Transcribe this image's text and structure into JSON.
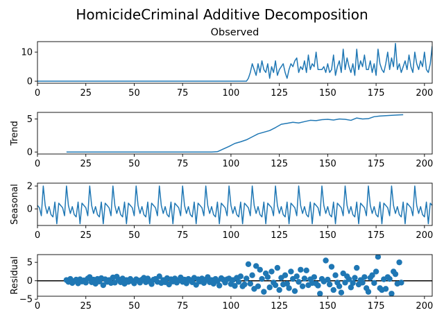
{
  "title": "HomicideCriminal Additive Decomposition",
  "chart_data": [
    {
      "type": "line",
      "title": "Observed",
      "ylabel": "",
      "xlim": [
        0,
        204
      ],
      "ylim": [
        -0.7,
        13.6
      ],
      "xticks": [
        "0",
        "25",
        "50",
        "75",
        "100",
        "125",
        "150",
        "175",
        "200"
      ],
      "xtick_values": [
        0,
        25,
        50,
        75,
        100,
        125,
        150,
        175,
        200
      ],
      "yticks": [
        "0",
        "10"
      ],
      "ytick_values": [
        0,
        10
      ],
      "color": "#1f77b4",
      "series": [
        {
          "x_start": 0,
          "values": [
            0,
            0,
            0,
            0,
            0,
            0,
            0,
            0,
            0,
            0,
            0,
            0,
            0,
            0,
            0,
            0,
            0,
            0,
            0,
            0,
            0,
            0,
            0,
            0,
            0,
            0,
            0,
            0,
            0,
            0,
            0,
            0,
            0,
            0,
            0,
            0,
            0,
            0,
            0,
            0,
            0,
            0,
            0,
            0,
            0,
            0,
            0,
            0,
            0,
            0,
            0,
            0,
            0,
            0,
            0,
            0,
            0,
            0,
            0,
            0,
            0,
            0,
            0,
            0,
            0,
            0,
            0,
            0,
            0,
            0,
            0,
            0,
            0,
            0,
            0,
            0,
            0,
            0,
            0,
            0,
            0,
            0,
            0,
            0,
            0,
            0,
            0,
            0,
            0,
            0,
            0,
            0,
            0,
            0,
            0,
            0,
            0,
            0,
            0,
            0,
            0,
            0,
            0,
            0,
            0,
            0,
            0,
            0,
            0,
            1,
            3,
            6,
            4,
            2,
            6,
            3,
            7,
            4,
            3,
            6,
            1,
            5,
            3,
            7,
            2,
            4,
            5,
            6,
            3,
            1,
            4,
            6,
            5,
            7,
            8,
            3,
            5,
            4,
            7,
            3,
            9,
            4,
            6,
            5,
            10,
            4,
            4,
            4,
            5,
            3,
            6,
            3,
            4,
            9,
            2,
            5,
            7,
            3,
            11,
            4,
            8,
            5,
            3,
            6,
            2,
            11,
            4,
            7,
            5,
            9,
            4,
            4,
            7,
            3,
            6,
            2,
            11,
            6,
            4,
            3,
            6,
            10,
            4,
            8,
            5,
            13,
            4,
            6,
            3,
            5,
            7,
            4,
            9,
            5,
            3,
            10,
            6,
            4,
            7,
            5,
            10,
            4,
            3,
            6,
            12,
            4,
            8,
            1
          ]
        }
      ]
    },
    {
      "type": "line",
      "title": "",
      "ylabel": "Trend",
      "xlim": [
        0,
        204
      ],
      "ylim": [
        -0.3,
        6.0
      ],
      "xticks": [
        "0",
        "25",
        "50",
        "75",
        "100",
        "125",
        "150",
        "175",
        "200"
      ],
      "xtick_values": [
        0,
        25,
        50,
        75,
        100,
        125,
        150,
        175,
        200
      ],
      "yticks": [
        "0",
        "5"
      ],
      "ytick_values": [
        0,
        5
      ],
      "color": "#1f77b4",
      "series": [
        {
          "x": [
            15,
            20,
            30,
            40,
            50,
            60,
            70,
            80,
            90,
            93,
            96,
            99,
            102,
            105,
            108,
            111,
            114,
            117,
            120,
            123,
            126,
            129,
            132,
            135,
            138,
            141,
            144,
            147,
            150,
            153,
            156,
            159,
            162,
            165,
            168,
            171,
            174,
            177,
            180,
            183,
            186,
            189
          ],
          "y": [
            0,
            0,
            0,
            0,
            0,
            0,
            0,
            0,
            0,
            0.05,
            0.45,
            0.85,
            1.3,
            1.55,
            1.85,
            2.3,
            2.75,
            3.0,
            3.25,
            3.7,
            4.2,
            4.35,
            4.5,
            4.4,
            4.6,
            4.8,
            4.75,
            4.9,
            4.95,
            4.85,
            5.0,
            4.95,
            4.8,
            5.15,
            5.0,
            5.05,
            5.35,
            5.45,
            5.5,
            5.55,
            5.6,
            5.65
          ]
        }
      ]
    },
    {
      "type": "line",
      "title": "",
      "ylabel": "Seasonal",
      "xlim": [
        0,
        204
      ],
      "ylim": [
        -1.45,
        2.25
      ],
      "xticks": [
        "0",
        "25",
        "50",
        "75",
        "100",
        "125",
        "150",
        "175",
        "200"
      ],
      "xtick_values": [
        0,
        25,
        50,
        75,
        100,
        125,
        150,
        175,
        200
      ],
      "yticks": [
        "0",
        "2"
      ],
      "ytick_values": [
        0,
        2
      ],
      "color": "#1f77b4",
      "period": 12,
      "pattern": [
        0.3,
        0.1,
        -0.6,
        2.0,
        0.3,
        -0.4,
        0.2,
        -0.5,
        -0.7,
        0.6,
        -1.3,
        0.5
      ],
      "x_start": 0,
      "x_end": 204
    },
    {
      "type": "scatter",
      "title": "",
      "ylabel": "Residual",
      "xlim": [
        0,
        204
      ],
      "ylim": [
        -4.2,
        7.1
      ],
      "xticks": [
        "0",
        "25",
        "50",
        "75",
        "100",
        "125",
        "150",
        "175",
        "200"
      ],
      "xtick_values": [
        0,
        25,
        50,
        75,
        100,
        125,
        150,
        175,
        200
      ],
      "yticks": [
        "−5",
        "0",
        "5"
      ],
      "ytick_values": [
        -5,
        0,
        5
      ],
      "color": "#1f77b4",
      "reference_line": 0,
      "x_start": 15,
      "values": [
        0.2,
        -0.3,
        0.5,
        -0.6,
        -0.1,
        0.3,
        -0.7,
        0.4,
        -0.2,
        0.1,
        -0.5,
        0.6,
        1.0,
        -0.4,
        0.3,
        -0.8,
        0.5,
        -0.2,
        0.7,
        -1.2,
        0.4,
        -0.3,
        0.2,
        -0.6,
        0.9,
        -0.5,
        1.1,
        0.3,
        -0.4,
        0.6,
        -0.8,
        0.2,
        -0.3,
        0.5,
        -0.1,
        -0.7,
        0.4,
        0.1,
        -0.5,
        0.3,
        0.8,
        -0.4,
        0.6,
        -0.2,
        -0.9,
        0.3,
        0.5,
        -0.3,
        1.2,
        -0.6,
        0.2,
        -0.4,
        0.7,
        -1.0,
        0.4,
        -0.2,
        0.6,
        -0.5,
        0.1,
        0.9,
        -0.3,
        0.3,
        -0.7,
        0.5,
        0.2,
        -0.4,
        0.8,
        -1.1,
        0.4,
        -0.2,
        0.6,
        -0.6,
        0.3,
        1.0,
        -0.4,
        0.2,
        -0.8,
        0.5,
        -0.1,
        -1.3,
        0.7,
        0.3,
        -0.5,
        0.4,
        0.6,
        -0.9,
        0.2,
        -1.4,
        0.8,
        -0.3,
        1.2,
        -1.5,
        -1.0,
        0.6,
        4.5,
        -0.8,
        1.5,
        -2.2,
        4.0,
        -1.5,
        3.0,
        0.5,
        -3.0,
        2.0,
        1.0,
        -1.8,
        2.5,
        -0.5,
        -1.2,
        3.5,
        -2.5,
        0.8,
        -1.0,
        1.5,
        -0.8,
        -2.0,
        2.5,
        0.5,
        -2.8,
        1.2,
        -0.3,
        3.0,
        -1.5,
        0.6,
        2.8,
        -1.2,
        0.4,
        -0.6,
        1.0,
        -0.8,
        -1.3,
        -3.5,
        0.5,
        -0.2,
        5.5,
        0.3,
        -1.0,
        3.8,
        -2.5,
        1.5,
        -0.5,
        -1.5,
        -3.2,
        2.0,
        -0.5,
        1.2,
        0.4,
        -1.8,
        -0.6,
        0.8,
        3.5,
        -1.0,
        0.2,
        -0.5,
        1.0,
        -2.0,
        -3.0,
        0.8,
        1.5,
        -0.6,
        2.5,
        6.5,
        -2.0,
        -2.5,
        0.4,
        -2.2,
        1.0,
        0.5,
        -3.5,
        2.5,
        1.8,
        -0.8,
        5.0,
        -0.5
      ]
    }
  ]
}
